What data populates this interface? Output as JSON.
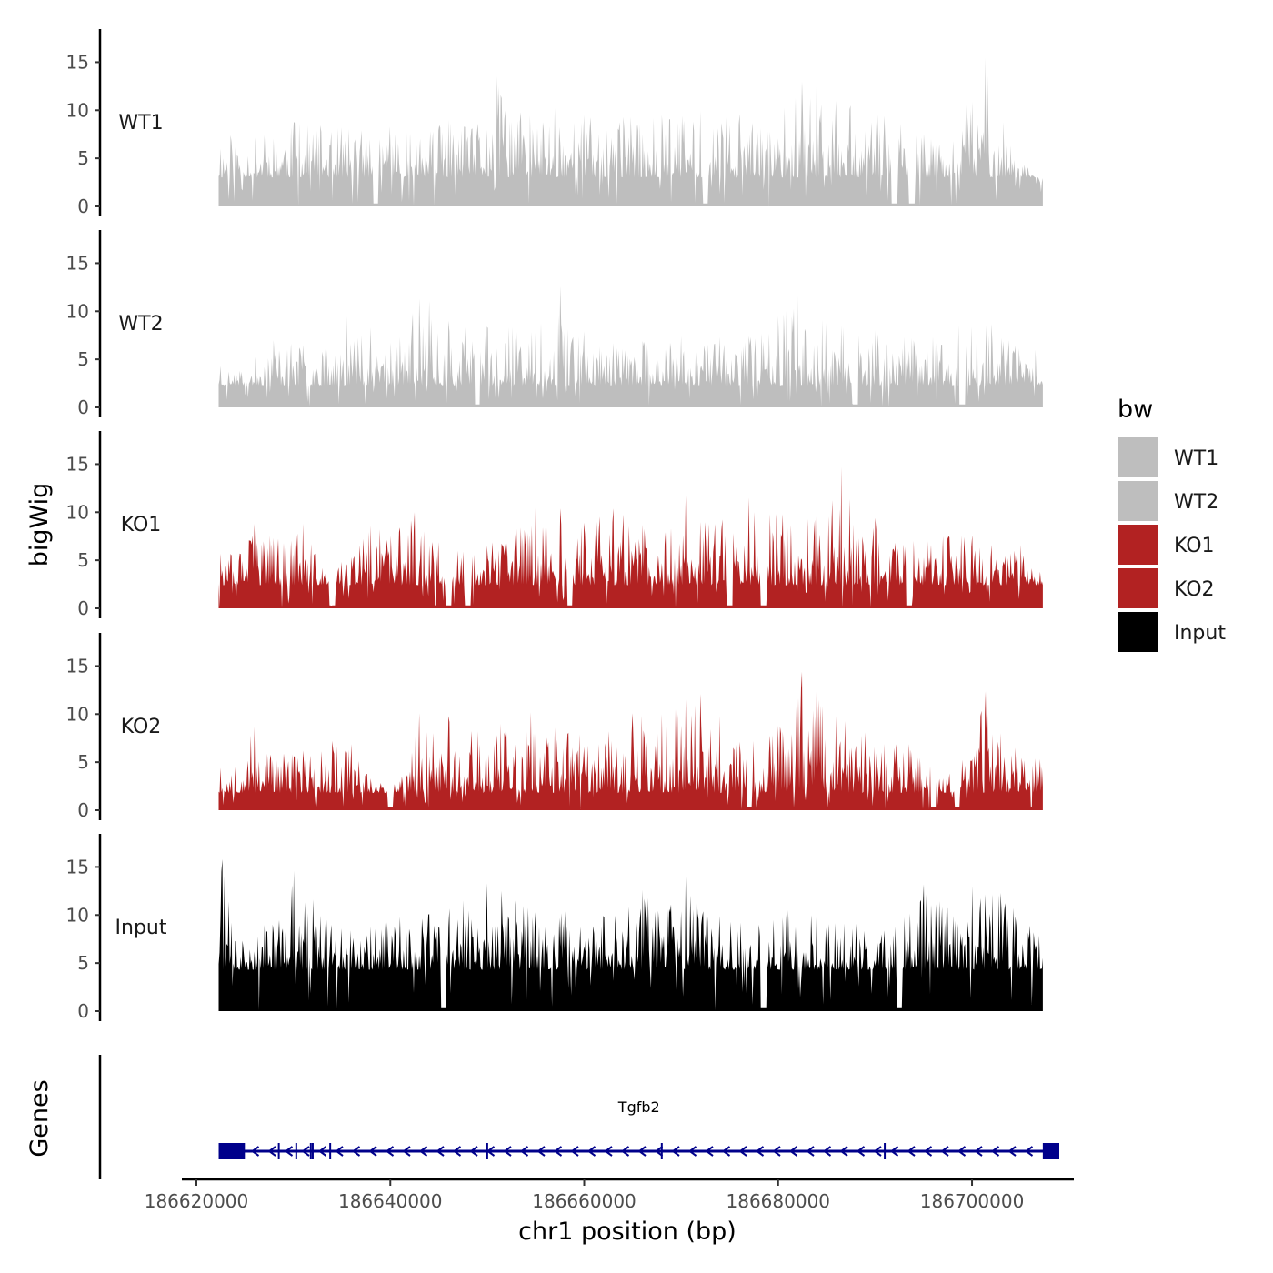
{
  "chart_data": {
    "type": "area",
    "title": "",
    "xlabel": "chr1 position (bp)",
    "ylabel": "bigWig",
    "genes_label": "Genes",
    "chromosome": "chr1",
    "xlim": [
      186618500,
      186710500
    ],
    "x_ticks": [
      186620000,
      186640000,
      186660000,
      186680000,
      186700000
    ],
    "x_tick_labels": [
      "186620000",
      "186640000",
      "186660000",
      "186680000",
      "186700000"
    ],
    "ylim": [
      0,
      17.5
    ],
    "y_ticks": [
      0,
      5,
      10,
      15
    ],
    "y_tick_labels": [
      "0",
      "5",
      "10",
      "15"
    ],
    "signal_range": [
      186622300,
      186707300
    ],
    "legend": {
      "title": "bw",
      "entries": [
        {
          "label": "WT1",
          "color": "#bebebe"
        },
        {
          "label": "WT2",
          "color": "#bebebe"
        },
        {
          "label": "KO1",
          "color": "#b22222"
        },
        {
          "label": "KO2",
          "color": "#b22222"
        },
        {
          "label": "Input",
          "color": "#000000"
        }
      ]
    },
    "tracks": [
      {
        "name": "WT1",
        "color": "#bebebe",
        "baseline": 3.0,
        "seed": 11,
        "peaks": [
          {
            "x": 186622500,
            "y": 6.0
          },
          {
            "x": 186623500,
            "y": 7.4
          },
          {
            "x": 186627000,
            "y": 7.4
          },
          {
            "x": 186630000,
            "y": 8.8
          },
          {
            "x": 186635000,
            "y": 8.2
          },
          {
            "x": 186640000,
            "y": 8.3
          },
          {
            "x": 186642000,
            "y": 7.6
          },
          {
            "x": 186646000,
            "y": 9.0
          },
          {
            "x": 186648500,
            "y": 8.1
          },
          {
            "x": 186651000,
            "y": 13.5
          },
          {
            "x": 186653500,
            "y": 9.8
          },
          {
            "x": 186657000,
            "y": 10.2
          },
          {
            "x": 186660000,
            "y": 9.5
          },
          {
            "x": 186664000,
            "y": 9.3
          },
          {
            "x": 186668000,
            "y": 9.5
          },
          {
            "x": 186672000,
            "y": 9.9
          },
          {
            "x": 186676000,
            "y": 9.6
          },
          {
            "x": 186679000,
            "y": 7.8
          },
          {
            "x": 186682500,
            "y": 13.0
          },
          {
            "x": 186684000,
            "y": 13.5
          },
          {
            "x": 186686000,
            "y": 11.0
          },
          {
            "x": 186687500,
            "y": 10.5
          },
          {
            "x": 186691000,
            "y": 9.4
          },
          {
            "x": 186695000,
            "y": 7.5
          },
          {
            "x": 186698000,
            "y": 6.8
          },
          {
            "x": 186701500,
            "y": 16.7
          },
          {
            "x": 186704000,
            "y": 6.3
          },
          {
            "x": 186707000,
            "y": 2.5
          }
        ],
        "dips": [
          186638500,
          186672500,
          186692000,
          186693800
        ]
      },
      {
        "name": "WT2",
        "color": "#bebebe",
        "baseline": 2.3,
        "seed": 23,
        "peaks": [
          {
            "x": 186622500,
            "y": 4.3
          },
          {
            "x": 186624500,
            "y": 3.8
          },
          {
            "x": 186628000,
            "y": 7.0
          },
          {
            "x": 186631000,
            "y": 6.5
          },
          {
            "x": 186633000,
            "y": 5.8
          },
          {
            "x": 186635500,
            "y": 9.5
          },
          {
            "x": 186638000,
            "y": 8.3
          },
          {
            "x": 186641000,
            "y": 7.3
          },
          {
            "x": 186643000,
            "y": 11.3
          },
          {
            "x": 186644000,
            "y": 11.1
          },
          {
            "x": 186646000,
            "y": 9.0
          },
          {
            "x": 186650000,
            "y": 8.4
          },
          {
            "x": 186653000,
            "y": 8.4
          },
          {
            "x": 186655000,
            "y": 7.8
          },
          {
            "x": 186657500,
            "y": 12.6
          },
          {
            "x": 186660000,
            "y": 7.9
          },
          {
            "x": 186663000,
            "y": 6.7
          },
          {
            "x": 186666000,
            "y": 6.9
          },
          {
            "x": 186670000,
            "y": 7.4
          },
          {
            "x": 186674000,
            "y": 7.3
          },
          {
            "x": 186677000,
            "y": 7.4
          },
          {
            "x": 186680000,
            "y": 9.5
          },
          {
            "x": 186682000,
            "y": 11.6
          },
          {
            "x": 186684500,
            "y": 9.1
          },
          {
            "x": 186686500,
            "y": 8.5
          },
          {
            "x": 186690000,
            "y": 8.0
          },
          {
            "x": 186693000,
            "y": 7.3
          },
          {
            "x": 186696000,
            "y": 7.3
          },
          {
            "x": 186700500,
            "y": 9.5
          },
          {
            "x": 186702000,
            "y": 8.7
          },
          {
            "x": 186704500,
            "y": 6.4
          },
          {
            "x": 186706500,
            "y": 6.0
          }
        ],
        "dips": [
          186649000,
          186688000,
          186699000
        ]
      },
      {
        "name": "KO1",
        "color": "#b22222",
        "baseline": 2.4,
        "seed": 37,
        "peaks": [
          {
            "x": 186622500,
            "y": 5.7
          },
          {
            "x": 186624500,
            "y": 5.7
          },
          {
            "x": 186626000,
            "y": 8.8
          },
          {
            "x": 186628000,
            "y": 7.3
          },
          {
            "x": 186631000,
            "y": 8.8
          },
          {
            "x": 186633000,
            "y": 4.2
          },
          {
            "x": 186636000,
            "y": 5.3
          },
          {
            "x": 186638000,
            "y": 8.6
          },
          {
            "x": 186641000,
            "y": 8.4
          },
          {
            "x": 186642500,
            "y": 10.0
          },
          {
            "x": 186645000,
            "y": 6.9
          },
          {
            "x": 186647500,
            "y": 5.9
          },
          {
            "x": 186650000,
            "y": 6.5
          },
          {
            "x": 186653000,
            "y": 9.0
          },
          {
            "x": 186655000,
            "y": 10.5
          },
          {
            "x": 186657500,
            "y": 10.4
          },
          {
            "x": 186660000,
            "y": 8.9
          },
          {
            "x": 186663000,
            "y": 10.4
          },
          {
            "x": 186666000,
            "y": 8.7
          },
          {
            "x": 186669000,
            "y": 8.3
          },
          {
            "x": 186670500,
            "y": 11.7
          },
          {
            "x": 186673500,
            "y": 8.8
          },
          {
            "x": 186677000,
            "y": 11.5
          },
          {
            "x": 186680500,
            "y": 9.8
          },
          {
            "x": 186683000,
            "y": 9.3
          },
          {
            "x": 186686500,
            "y": 14.7
          },
          {
            "x": 186690000,
            "y": 9.4
          },
          {
            "x": 186694000,
            "y": 7.0
          },
          {
            "x": 186697000,
            "y": 7.5
          },
          {
            "x": 186700000,
            "y": 7.6
          },
          {
            "x": 186702000,
            "y": 6.6
          },
          {
            "x": 186705000,
            "y": 6.6
          },
          {
            "x": 186707000,
            "y": 3.8
          }
        ],
        "dips": [
          186634000,
          186646000,
          186648000,
          186658500,
          186675000,
          186678500,
          186693500
        ]
      },
      {
        "name": "KO2",
        "color": "#b22222",
        "baseline": 1.8,
        "seed": 53,
        "peaks": [
          {
            "x": 186622500,
            "y": 4.4
          },
          {
            "x": 186624000,
            "y": 4.5
          },
          {
            "x": 186626000,
            "y": 8.7
          },
          {
            "x": 186629000,
            "y": 5.9
          },
          {
            "x": 186631000,
            "y": 6.2
          },
          {
            "x": 186634000,
            "y": 7.2
          },
          {
            "x": 186636000,
            "y": 6.9
          },
          {
            "x": 186638000,
            "y": 3.3
          },
          {
            "x": 186641000,
            "y": 3.0
          },
          {
            "x": 186643000,
            "y": 10.1
          },
          {
            "x": 186646000,
            "y": 9.8
          },
          {
            "x": 186649000,
            "y": 8.2
          },
          {
            "x": 186652000,
            "y": 9.6
          },
          {
            "x": 186654500,
            "y": 10.2
          },
          {
            "x": 186657000,
            "y": 8.6
          },
          {
            "x": 186659500,
            "y": 7.9
          },
          {
            "x": 186662500,
            "y": 8.2
          },
          {
            "x": 186665000,
            "y": 10.1
          },
          {
            "x": 186668000,
            "y": 10.0
          },
          {
            "x": 186670500,
            "y": 11.5
          },
          {
            "x": 186672000,
            "y": 12.1
          },
          {
            "x": 186674000,
            "y": 9.8
          },
          {
            "x": 186677500,
            "y": 7.2
          },
          {
            "x": 186680000,
            "y": 8.8
          },
          {
            "x": 186682500,
            "y": 14.4
          },
          {
            "x": 186684000,
            "y": 13.2
          },
          {
            "x": 186686000,
            "y": 9.8
          },
          {
            "x": 186689000,
            "y": 8.1
          },
          {
            "x": 186693500,
            "y": 6.9
          },
          {
            "x": 186697000,
            "y": 3.3
          },
          {
            "x": 186700500,
            "y": 7.0
          },
          {
            "x": 186701500,
            "y": 15.0
          },
          {
            "x": 186704500,
            "y": 6.5
          },
          {
            "x": 186707000,
            "y": 5.3
          }
        ],
        "dips": [
          186640000,
          186677000,
          186696000,
          186698500
        ]
      },
      {
        "name": "Input",
        "color": "#000000",
        "baseline": 4.3,
        "seed": 71,
        "peaks": [
          {
            "x": 186622700,
            "y": 15.8
          },
          {
            "x": 186624000,
            "y": 7.3
          },
          {
            "x": 186627000,
            "y": 9.0
          },
          {
            "x": 186630000,
            "y": 14.6
          },
          {
            "x": 186632000,
            "y": 11.6
          },
          {
            "x": 186635000,
            "y": 8.6
          },
          {
            "x": 186638000,
            "y": 8.8
          },
          {
            "x": 186641000,
            "y": 9.8
          },
          {
            "x": 186644000,
            "y": 10.1
          },
          {
            "x": 186647500,
            "y": 11.5
          },
          {
            "x": 186650000,
            "y": 13.3
          },
          {
            "x": 186651500,
            "y": 12.5
          },
          {
            "x": 186655000,
            "y": 10.3
          },
          {
            "x": 186658000,
            "y": 10.4
          },
          {
            "x": 186662000,
            "y": 9.9
          },
          {
            "x": 186666000,
            "y": 12.6
          },
          {
            "x": 186669000,
            "y": 11.1
          },
          {
            "x": 186670500,
            "y": 14.0
          },
          {
            "x": 186674000,
            "y": 9.9
          },
          {
            "x": 186678000,
            "y": 9.0
          },
          {
            "x": 186681000,
            "y": 10.5
          },
          {
            "x": 186684000,
            "y": 10.3
          },
          {
            "x": 186688000,
            "y": 9.1
          },
          {
            "x": 186691000,
            "y": 8.4
          },
          {
            "x": 186695000,
            "y": 13.2
          },
          {
            "x": 186697500,
            "y": 10.7
          },
          {
            "x": 186700000,
            "y": 13.0
          },
          {
            "x": 186703000,
            "y": 12.3
          },
          {
            "x": 186706000,
            "y": 8.9
          }
        ],
        "dips": [
          186645500,
          186678500,
          186692500
        ]
      }
    ],
    "gene": {
      "name": "Tgfb2",
      "strand": "-",
      "color": "#00008b",
      "start": 186622300,
      "end": 186709000,
      "exons": [
        [
          186622300,
          186625000
        ],
        [
          186707300,
          186709000
        ]
      ],
      "markers": [
        186628500,
        186630300,
        186631800,
        186633800,
        186632000,
        186650000,
        186668000,
        186691000
      ]
    }
  }
}
